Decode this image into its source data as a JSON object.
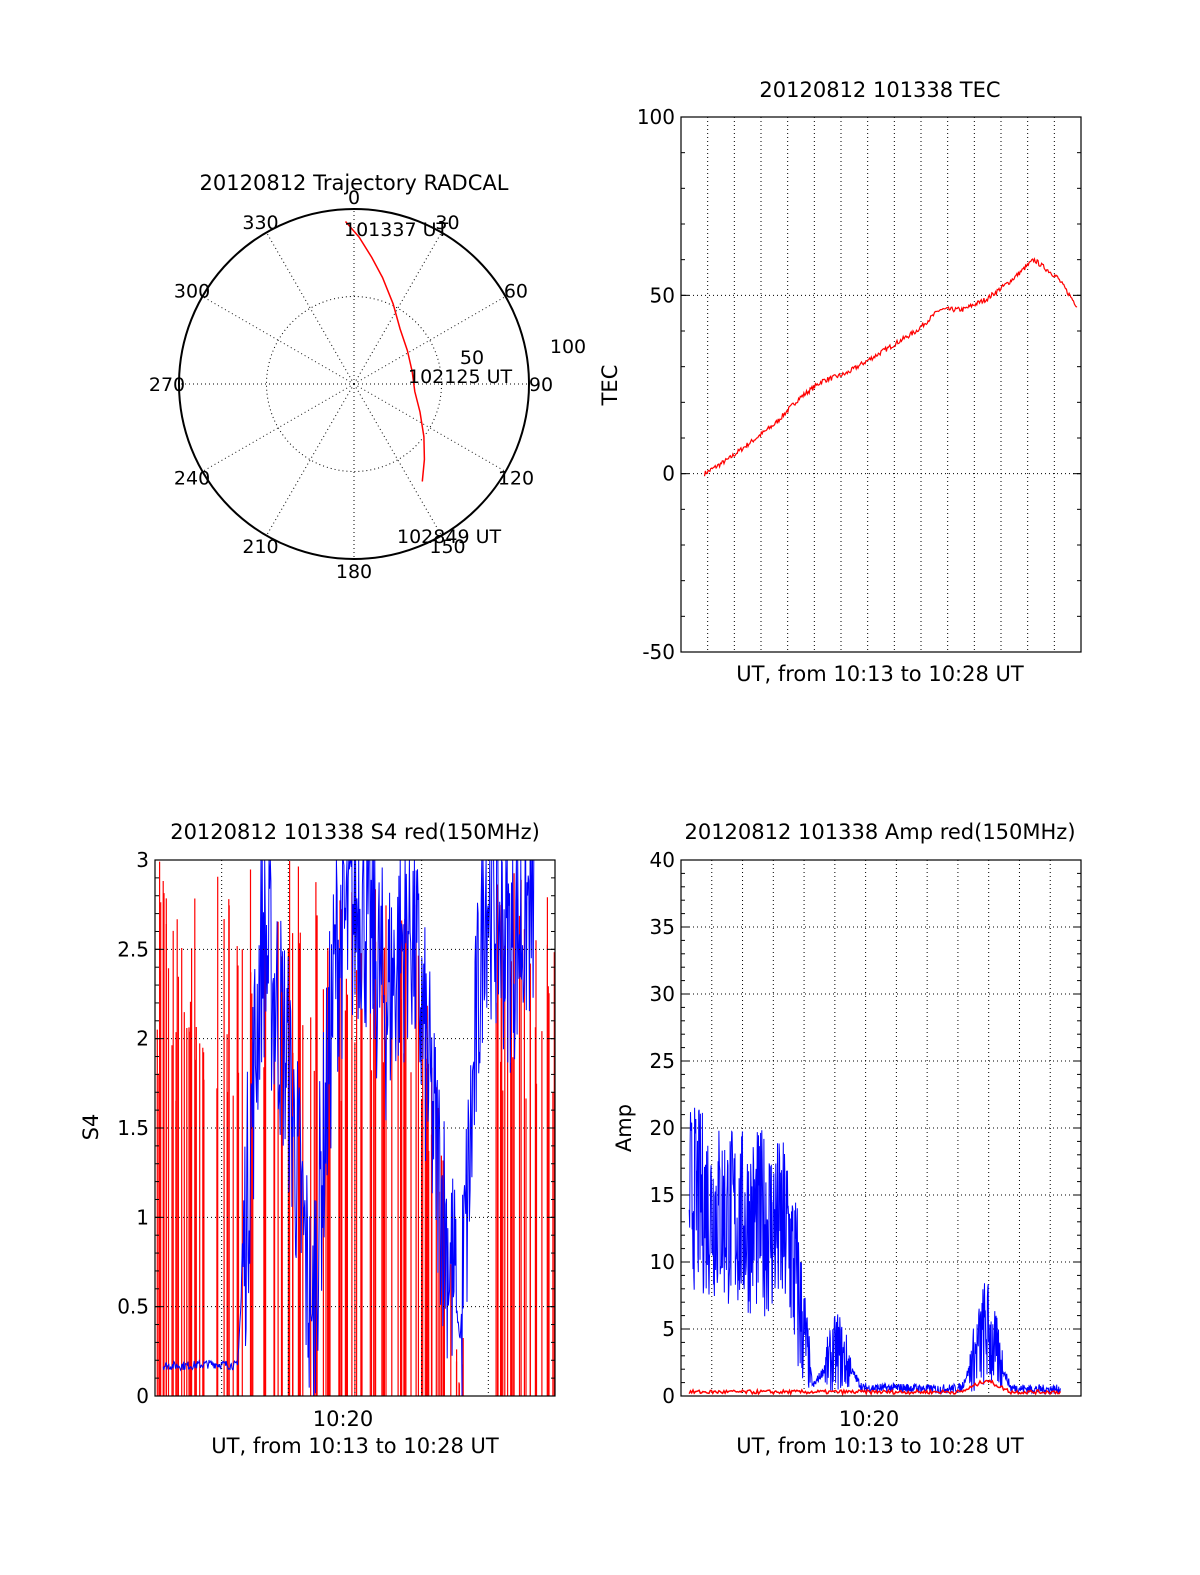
{
  "colors": {
    "red": "#ff0000",
    "blue": "#0000ff",
    "black": "#000000"
  },
  "chart_data": [
    {
      "id": "trajectory",
      "type": "polar",
      "title": "20120812 Trajectory RADCAL",
      "azimuth_labels": [
        "0",
        "30",
        "60",
        "90",
        "120",
        "150",
        "180",
        "210",
        "240",
        "270",
        "300",
        "330"
      ],
      "radius_labels": [
        "50",
        "100"
      ],
      "rlim": [
        0,
        100
      ],
      "points_label": [
        "101337 UT",
        "102125 UT",
        "102849 UT"
      ],
      "series": [
        {
          "color": "red",
          "points": [
            {
              "az": -3,
              "r": 93
            },
            {
              "az": 2,
              "r": 84
            },
            {
              "az": 8,
              "r": 73
            },
            {
              "az": 15,
              "r": 63
            },
            {
              "az": 26,
              "r": 51
            },
            {
              "az": 40,
              "r": 41
            },
            {
              "az": 58,
              "r": 36
            },
            {
              "az": 78,
              "r": 34
            },
            {
              "az": 97,
              "r": 35
            },
            {
              "az": 113,
              "r": 41
            },
            {
              "az": 127,
              "r": 50
            },
            {
              "az": 137,
              "r": 59
            },
            {
              "az": 145,
              "r": 68
            }
          ]
        }
      ]
    },
    {
      "id": "tec",
      "type": "line",
      "title": "20120812 101338 TEC",
      "xlabel": "UT, from 10:13 to 10:28 UT",
      "ylabel": "TEC",
      "xlim": [
        "10:12",
        "10:29"
      ],
      "ylim": [
        -50,
        100
      ],
      "yticks": [
        "-50",
        "0",
        "50",
        "100"
      ],
      "grid": true,
      "series": [
        {
          "color": "red",
          "x": [
            "10:13",
            "10:14",
            "10:15",
            "10:16",
            "10:17",
            "10:18",
            "10:19",
            "10:20",
            "10:21",
            "10:22",
            "10:23",
            "10:24",
            "10:25",
            "10:26",
            "10:27",
            "10:28",
            "10:28:50"
          ],
          "y": [
            0,
            4,
            9,
            14,
            21,
            26,
            28,
            32,
            36,
            40,
            46,
            46,
            49,
            54,
            60,
            55,
            47
          ]
        }
      ]
    },
    {
      "id": "s4",
      "type": "line",
      "title": "20120812 101338 S4 red(150MHz)",
      "xlabel": "UT, from 10:13 to 10:28 UT",
      "ylabel": "S4",
      "xtick_labels": [
        "10:20"
      ],
      "ylim": [
        0,
        3
      ],
      "yticks": [
        "0",
        "0.5",
        "1",
        "1.5",
        "2",
        "2.5",
        "3"
      ],
      "grid": true,
      "series": [
        {
          "color": "blue",
          "x": [
            "10:13",
            "10:14",
            "10:15",
            "10:16",
            "10:17",
            "10:18",
            "10:19",
            "10:20",
            "10:21",
            "10:22",
            "10:23",
            "10:24",
            "10:25",
            "10:26",
            "10:27",
            "10:28"
          ],
          "y": [
            0.17,
            0.17,
            0.18,
            0.17,
            2.6,
            1.9,
            0.4,
            2.5,
            2.8,
            2.2,
            2.7,
            1.4,
            0.32,
            2.9,
            2.5,
            2.8
          ]
        },
        {
          "color": "red",
          "x": [
            "10:13",
            "10:14",
            "10:15",
            "10:16",
            "10:17",
            "10:18",
            "10:19",
            "10:20",
            "10:21",
            "10:22",
            "10:23",
            "10:24",
            "10:25",
            "10:26",
            "10:27",
            "10:28"
          ],
          "y": [
            3,
            3,
            3,
            3,
            3,
            3,
            3,
            3,
            3,
            3,
            3,
            2,
            0,
            3,
            3,
            3
          ]
        }
      ]
    },
    {
      "id": "amp",
      "type": "line",
      "title": "20120812 101338 Amp red(150MHz)",
      "xlabel": "UT, from 10:13 to 10:28 UT",
      "ylabel": "Amp",
      "xtick_labels": [
        "10:20"
      ],
      "ylim": [
        0,
        40
      ],
      "yticks": [
        "0",
        "5",
        "10",
        "15",
        "20",
        "25",
        "30",
        "35",
        "40"
      ],
      "grid": true,
      "series": [
        {
          "color": "blue",
          "x": [
            "10:13",
            "10:14",
            "10:15",
            "10:16",
            "10:17",
            "10:18",
            "10:19",
            "10:20",
            "10:21",
            "10:22",
            "10:23",
            "10:24",
            "10:25",
            "10:26",
            "10:27",
            "10:28"
          ],
          "y": [
            15,
            14,
            13,
            13,
            12,
            0.7,
            3.5,
            0.6,
            0.6,
            0.6,
            0.5,
            0.6,
            5,
            0.6,
            0.5,
            0.5
          ]
        },
        {
          "color": "red",
          "x": [
            "10:13",
            "10:14",
            "10:15",
            "10:16",
            "10:17",
            "10:18",
            "10:19",
            "10:20",
            "10:21",
            "10:22",
            "10:23",
            "10:24",
            "10:25",
            "10:26",
            "10:27",
            "10:28"
          ],
          "y": [
            0.3,
            0.3,
            0.3,
            0.3,
            0.3,
            0.3,
            0.3,
            0.3,
            0.3,
            0.3,
            0.3,
            0.3,
            1.2,
            0.3,
            0.3,
            0.3
          ]
        }
      ]
    }
  ]
}
